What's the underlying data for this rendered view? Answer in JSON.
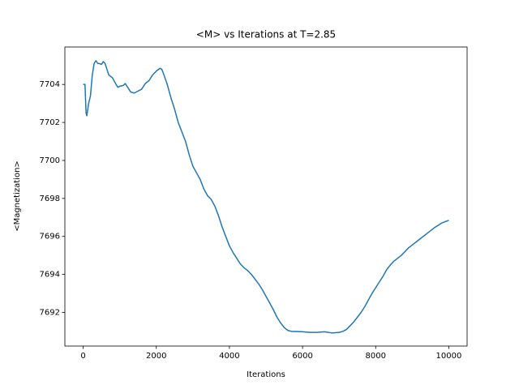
{
  "chart_data": {
    "type": "line",
    "title": "<M> vs Iterations at T=2.85",
    "x_label": "Iterations",
    "y_label": "<Magnetization>",
    "color": "#1f77b4",
    "x": [
      0,
      50,
      80,
      100,
      150,
      200,
      250,
      300,
      350,
      400,
      450,
      500,
      550,
      600,
      650,
      700,
      800,
      900,
      950,
      1000,
      1100,
      1150,
      1200,
      1300,
      1400,
      1500,
      1600,
      1700,
      1800,
      1900,
      2000,
      2100,
      2150,
      2200,
      2300,
      2400,
      2500,
      2600,
      2700,
      2800,
      2900,
      3000,
      3100,
      3200,
      3300,
      3400,
      3500,
      3600,
      3700,
      3800,
      3900,
      4000,
      4100,
      4200,
      4300,
      4400,
      4500,
      4600,
      4700,
      4800,
      4900,
      5000,
      5100,
      5200,
      5300,
      5400,
      5500,
      5600,
      5700,
      5800,
      6000,
      6200,
      6400,
      6600,
      6800,
      7000,
      7100,
      7200,
      7300,
      7400,
      7500,
      7600,
      7700,
      7800,
      7900,
      8000,
      8100,
      8200,
      8300,
      8400,
      8500,
      8600,
      8700,
      8800,
      8900,
      9000,
      9200,
      9400,
      9600,
      9800,
      10000
    ],
    "values": [
      7704.0,
      7704.0,
      7702.5,
      7702.35,
      7703.0,
      7703.4,
      7704.5,
      7705.1,
      7705.25,
      7705.1,
      7705.1,
      7705.05,
      7705.2,
      7705.1,
      7704.8,
      7704.5,
      7704.35,
      7704.0,
      7703.85,
      7703.9,
      7703.95,
      7704.05,
      7703.9,
      7703.6,
      7703.55,
      7703.65,
      7703.75,
      7704.05,
      7704.2,
      7704.5,
      7704.7,
      7704.85,
      7704.8,
      7704.55,
      7704.0,
      7703.3,
      7702.7,
      7702.0,
      7701.5,
      7701.0,
      7700.3,
      7699.7,
      7699.35,
      7699.0,
      7698.5,
      7698.15,
      7697.95,
      7697.6,
      7697.1,
      7696.5,
      7696.0,
      7695.5,
      7695.15,
      7694.85,
      7694.55,
      7694.35,
      7694.2,
      7694.0,
      7693.75,
      7693.5,
      7693.2,
      7692.85,
      7692.5,
      7692.15,
      7691.75,
      7691.45,
      7691.2,
      7691.05,
      7691.0,
      7691.0,
      7690.98,
      7690.95,
      7690.95,
      7690.98,
      7690.92,
      7690.95,
      7691.0,
      7691.1,
      7691.3,
      7691.5,
      7691.75,
      7692.0,
      7692.3,
      7692.65,
      7693.0,
      7693.3,
      7693.6,
      7693.9,
      7694.25,
      7694.5,
      7694.7,
      7694.85,
      7695.0,
      7695.2,
      7695.4,
      7695.55,
      7695.85,
      7696.15,
      7696.45,
      7696.7,
      7696.85
    ],
    "xlim": [
      -500,
      10500
    ],
    "xticks": [
      0,
      2000,
      4000,
      6000,
      8000,
      10000
    ],
    "ylim": [
      7690.23,
      7705.97
    ],
    "yticks": [
      7692,
      7694,
      7696,
      7698,
      7700,
      7702,
      7704
    ]
  }
}
